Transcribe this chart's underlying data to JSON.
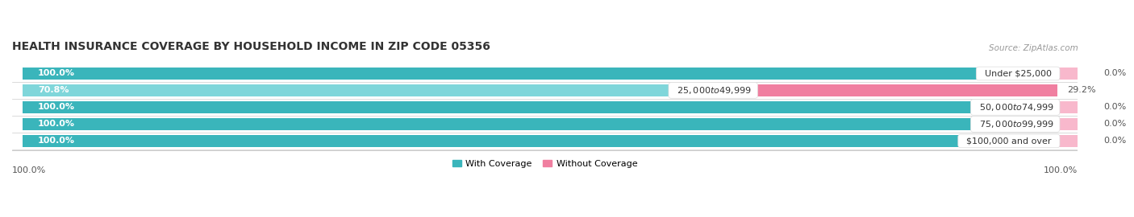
{
  "title": "HEALTH INSURANCE COVERAGE BY HOUSEHOLD INCOME IN ZIP CODE 05356",
  "source": "Source: ZipAtlas.com",
  "categories": [
    "Under $25,000",
    "$25,000 to $49,999",
    "$50,000 to $74,999",
    "$75,000 to $99,999",
    "$100,000 and over"
  ],
  "with_coverage": [
    100.0,
    70.8,
    100.0,
    100.0,
    100.0
  ],
  "without_coverage": [
    0.0,
    29.2,
    0.0,
    0.0,
    0.0
  ],
  "color_with": "#3ab5bb",
  "color_with_light": "#7fd6da",
  "color_without": "#f07fa0",
  "color_without_light": "#f8b8cc",
  "color_bg_bar": "#e8eaec",
  "title_fontsize": 10,
  "label_fontsize": 8,
  "cat_fontsize": 8,
  "tick_fontsize": 8,
  "figsize": [
    14.06,
    2.7
  ],
  "dpi": 100,
  "legend_labels": [
    "With Coverage",
    "Without Coverage"
  ]
}
